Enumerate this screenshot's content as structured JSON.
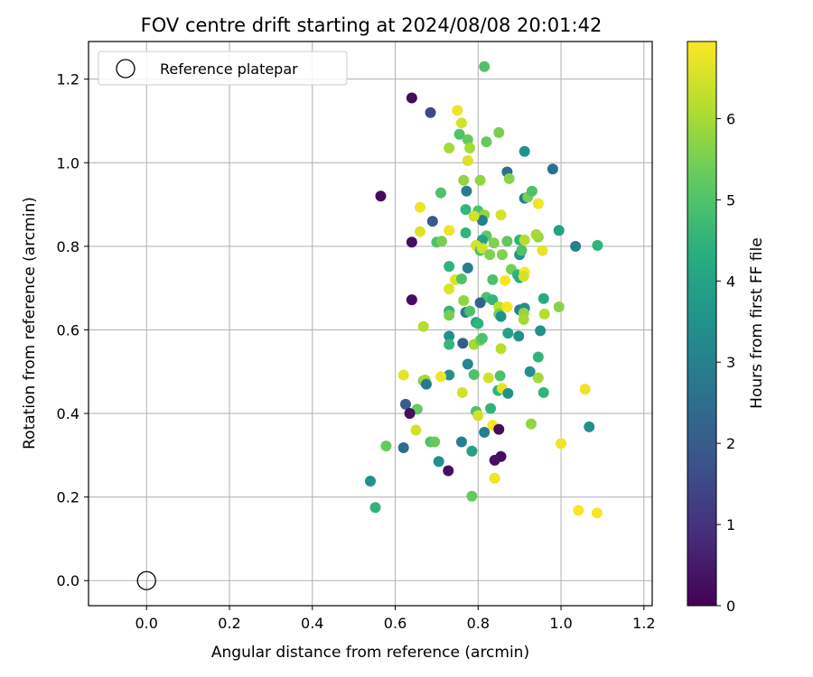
{
  "chart_data": {
    "type": "scatter",
    "title": "FOV centre drift starting at 2024/08/08 20:01:42",
    "xlabel": "Angular distance from reference (arcmin)",
    "ylabel": "Rotation from reference (arcmin)",
    "xlim": [
      -0.14,
      1.22
    ],
    "ylim": [
      -0.06,
      1.29
    ],
    "xticks": [
      "0.0",
      "0.2",
      "0.4",
      "0.6",
      "0.8",
      "1.0",
      "1.2"
    ],
    "xtick_values": [
      0.0,
      0.2,
      0.4,
      0.6,
      0.8,
      1.0,
      1.2
    ],
    "yticks": [
      "0.0",
      "0.2",
      "0.4",
      "0.6",
      "0.8",
      "1.0",
      "1.2"
    ],
    "ytick_values": [
      0.0,
      0.2,
      0.4,
      0.6,
      0.8,
      1.0,
      1.2
    ],
    "grid": true,
    "legend_placement": "top-left",
    "reference": {
      "name": "Reference platepar",
      "x": 0.0,
      "y": 0.0
    },
    "colorbar": {
      "label": "Hours from first FF file",
      "min": 0,
      "max": 6.95,
      "ticks": [
        "0",
        "1",
        "2",
        "3",
        "4",
        "5",
        "6"
      ],
      "tick_values": [
        0,
        1,
        2,
        3,
        4,
        5,
        6
      ],
      "colormap": "viridis"
    },
    "points": [
      [
        0.64,
        1.155,
        0.2
      ],
      [
        0.685,
        1.12,
        1.5
      ],
      [
        0.565,
        0.92,
        0.2
      ],
      [
        0.64,
        0.81,
        0.3
      ],
      [
        0.64,
        0.672,
        0.2
      ],
      [
        0.75,
        1.125,
        6.8
      ],
      [
        0.76,
        1.095,
        6.5
      ],
      [
        0.755,
        1.068,
        5.0
      ],
      [
        0.775,
        1.055,
        5.3
      ],
      [
        0.78,
        1.035,
        6.0
      ],
      [
        0.73,
        1.035,
        6.0
      ],
      [
        0.775,
        1.005,
        6.6
      ],
      [
        0.815,
        1.23,
        5.0
      ],
      [
        0.82,
        1.05,
        5.3
      ],
      [
        0.85,
        1.072,
        5.5
      ],
      [
        0.912,
        1.027,
        3.5
      ],
      [
        0.87,
        0.978,
        2.5
      ],
      [
        0.98,
        0.985,
        2.5
      ],
      [
        0.875,
        0.962,
        5.7
      ],
      [
        0.765,
        0.958,
        5.8
      ],
      [
        0.805,
        0.958,
        5.8
      ],
      [
        0.772,
        0.932,
        3.0
      ],
      [
        0.71,
        0.928,
        5.0
      ],
      [
        0.912,
        0.915,
        3.0
      ],
      [
        0.92,
        0.918,
        5.5
      ],
      [
        0.93,
        0.932,
        5.0
      ],
      [
        0.945,
        0.902,
        6.8
      ],
      [
        0.66,
        0.893,
        6.8
      ],
      [
        0.69,
        0.86,
        2.0
      ],
      [
        0.77,
        0.888,
        4.6
      ],
      [
        0.8,
        0.885,
        5.0
      ],
      [
        0.815,
        0.875,
        5.8
      ],
      [
        0.855,
        0.875,
        6.5
      ],
      [
        0.81,
        0.862,
        3.0
      ],
      [
        0.79,
        0.872,
        6.5
      ],
      [
        0.995,
        0.838,
        4.0
      ],
      [
        0.66,
        0.835,
        6.6
      ],
      [
        0.73,
        0.838,
        6.8
      ],
      [
        0.7,
        0.81,
        5.0
      ],
      [
        0.712,
        0.812,
        5.5
      ],
      [
        0.77,
        0.832,
        4.5
      ],
      [
        0.82,
        0.825,
        5.2
      ],
      [
        0.81,
        0.815,
        4.0
      ],
      [
        0.838,
        0.808,
        5.6
      ],
      [
        0.87,
        0.812,
        5.2
      ],
      [
        0.9,
        0.815,
        4.5
      ],
      [
        0.912,
        0.815,
        6.2
      ],
      [
        0.945,
        0.822,
        5.8
      ],
      [
        0.94,
        0.828,
        6.0
      ],
      [
        0.795,
        0.802,
        6.5
      ],
      [
        0.805,
        0.79,
        5.0
      ],
      [
        0.81,
        0.795,
        6.5
      ],
      [
        0.828,
        0.78,
        5.6
      ],
      [
        0.858,
        0.78,
        5.6
      ],
      [
        0.9,
        0.78,
        3.5
      ],
      [
        0.905,
        0.79,
        5.0
      ],
      [
        0.955,
        0.79,
        6.7
      ],
      [
        1.035,
        0.8,
        3.0
      ],
      [
        1.088,
        0.802,
        4.5
      ],
      [
        0.73,
        0.752,
        4.5
      ],
      [
        0.775,
        0.748,
        3.0
      ],
      [
        0.745,
        0.72,
        6.6
      ],
      [
        0.76,
        0.722,
        5.0
      ],
      [
        0.73,
        0.698,
        6.6
      ],
      [
        0.835,
        0.72,
        5.0
      ],
      [
        0.88,
        0.745,
        5.5
      ],
      [
        0.895,
        0.732,
        4.5
      ],
      [
        0.9,
        0.725,
        4.2
      ],
      [
        0.912,
        0.738,
        6.9
      ],
      [
        0.91,
        0.728,
        6.5
      ],
      [
        0.865,
        0.718,
        6.9
      ],
      [
        0.82,
        0.678,
        5.0
      ],
      [
        0.835,
        0.672,
        4.6
      ],
      [
        0.805,
        0.665,
        2.2
      ],
      [
        0.765,
        0.67,
        5.8
      ],
      [
        0.85,
        0.655,
        6.3
      ],
      [
        0.87,
        0.655,
        6.9
      ],
      [
        0.958,
        0.675,
        4.2
      ],
      [
        0.995,
        0.655,
        5.7
      ],
      [
        0.73,
        0.645,
        4.5
      ],
      [
        0.73,
        0.635,
        5.5
      ],
      [
        0.77,
        0.642,
        3.0
      ],
      [
        0.78,
        0.645,
        5.0
      ],
      [
        0.85,
        0.638,
        5.5
      ],
      [
        0.855,
        0.632,
        3.5
      ],
      [
        0.9,
        0.648,
        3.0
      ],
      [
        0.912,
        0.652,
        3.5
      ],
      [
        0.91,
        0.64,
        5.8
      ],
      [
        0.91,
        0.625,
        6.0
      ],
      [
        0.96,
        0.638,
        6.2
      ],
      [
        0.668,
        0.608,
        6.2
      ],
      [
        0.795,
        0.618,
        4.0
      ],
      [
        0.8,
        0.615,
        4.5
      ],
      [
        0.95,
        0.598,
        3.5
      ],
      [
        0.73,
        0.585,
        3.5
      ],
      [
        0.763,
        0.568,
        2.0
      ],
      [
        0.73,
        0.565,
        4.6
      ],
      [
        0.79,
        0.565,
        6.0
      ],
      [
        0.805,
        0.575,
        5.5
      ],
      [
        0.81,
        0.58,
        5.0
      ],
      [
        0.872,
        0.592,
        4.0
      ],
      [
        0.898,
        0.585,
        3.5
      ],
      [
        0.855,
        0.555,
        6.2
      ],
      [
        0.945,
        0.535,
        4.5
      ],
      [
        0.775,
        0.518,
        3.2
      ],
      [
        0.79,
        0.493,
        5.0
      ],
      [
        0.73,
        0.492,
        3.5
      ],
      [
        0.71,
        0.488,
        6.8
      ],
      [
        0.62,
        0.492,
        6.7
      ],
      [
        0.668,
        0.478,
        5.5
      ],
      [
        0.672,
        0.48,
        6.0
      ],
      [
        0.675,
        0.47,
        2.8
      ],
      [
        0.825,
        0.485,
        6.5
      ],
      [
        0.853,
        0.49,
        5.0
      ],
      [
        0.925,
        0.5,
        3.5
      ],
      [
        0.945,
        0.485,
        6.0
      ],
      [
        0.958,
        0.45,
        4.5
      ],
      [
        0.762,
        0.45,
        6.5
      ],
      [
        0.848,
        0.455,
        4.5
      ],
      [
        0.858,
        0.46,
        6.7
      ],
      [
        0.872,
        0.448,
        3.5
      ],
      [
        1.058,
        0.458,
        6.8
      ],
      [
        0.625,
        0.422,
        2.0
      ],
      [
        0.653,
        0.41,
        5.3
      ],
      [
        0.635,
        0.4,
        0.3
      ],
      [
        0.795,
        0.405,
        5.0
      ],
      [
        0.8,
        0.395,
        6.5
      ],
      [
        0.83,
        0.412,
        4.5
      ],
      [
        0.835,
        0.372,
        6.9
      ],
      [
        0.85,
        0.362,
        0.2
      ],
      [
        0.815,
        0.355,
        3.0
      ],
      [
        0.928,
        0.375,
        5.8
      ],
      [
        1.068,
        0.368,
        3.5
      ],
      [
        0.65,
        0.36,
        6.5
      ],
      [
        0.685,
        0.332,
        5.0
      ],
      [
        0.695,
        0.332,
        5.3
      ],
      [
        0.76,
        0.332,
        3.0
      ],
      [
        0.62,
        0.318,
        2.5
      ],
      [
        0.578,
        0.322,
        5.3
      ],
      [
        0.785,
        0.31,
        4.0
      ],
      [
        1.0,
        0.328,
        6.8
      ],
      [
        0.705,
        0.285,
        3.5
      ],
      [
        0.728,
        0.263,
        0.3
      ],
      [
        0.855,
        0.297,
        0.2
      ],
      [
        0.84,
        0.288,
        0.3
      ],
      [
        0.54,
        0.238,
        3.5
      ],
      [
        0.84,
        0.245,
        6.8
      ],
      [
        0.785,
        0.202,
        5.3
      ],
      [
        0.552,
        0.175,
        4.5
      ],
      [
        1.042,
        0.168,
        6.9
      ],
      [
        1.087,
        0.162,
        6.9
      ]
    ]
  }
}
